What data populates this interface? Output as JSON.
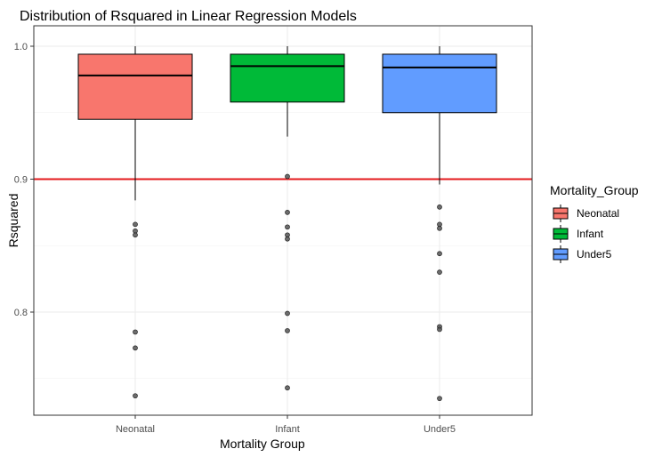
{
  "chart_data": {
    "type": "boxplot",
    "title": "Distribution of Rsquared in Linear Regression Models",
    "xlabel": "Mortality Group",
    "ylabel": "Rsquared",
    "ylim": [
      0.7226,
      1.0
    ],
    "y_ticks": [
      0.8,
      0.9,
      1.0
    ],
    "y_tick_labels": [
      "0.8",
      "0.9",
      "1.0"
    ],
    "grid": true,
    "reference_line": {
      "y": 0.9,
      "color": "#e41a1c"
    },
    "legend": {
      "title": "Mortality_Group",
      "position": "right",
      "entries": [
        "Neonatal",
        "Infant",
        "Under5"
      ]
    },
    "categories": [
      "Neonatal",
      "Infant",
      "Under5"
    ],
    "series": [
      {
        "name": "Neonatal",
        "color": "#f8766d",
        "whisker_low": 0.884,
        "q1": 0.945,
        "median": 0.978,
        "q3": 0.994,
        "whisker_high": 1.0,
        "outliers": [
          0.866,
          0.861,
          0.858,
          0.785,
          0.773,
          0.737
        ]
      },
      {
        "name": "Infant",
        "color": "#00ba38",
        "whisker_low": 0.932,
        "q1": 0.958,
        "median": 0.985,
        "q3": 0.994,
        "whisker_high": 1.0,
        "outliers": [
          0.902,
          0.875,
          0.864,
          0.858,
          0.855,
          0.799,
          0.786,
          0.743
        ]
      },
      {
        "name": "Under5",
        "color": "#619cff",
        "whisker_low": 0.896,
        "q1": 0.95,
        "median": 0.984,
        "q3": 0.994,
        "whisker_high": 1.0,
        "outliers": [
          0.879,
          0.866,
          0.863,
          0.844,
          0.83,
          0.789,
          0.787,
          0.735
        ]
      }
    ]
  }
}
